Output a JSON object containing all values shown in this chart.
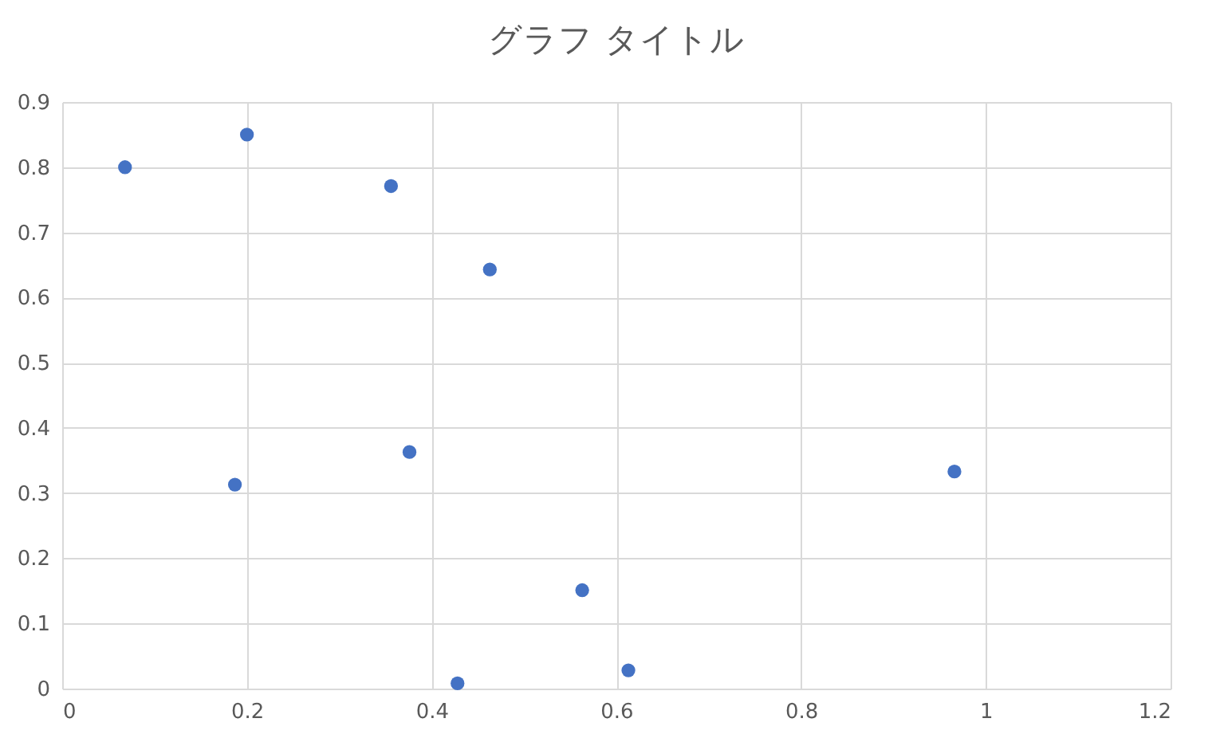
{
  "chart_data": {
    "type": "scatter",
    "title": "グラフ タイトル",
    "x": [
      0.068,
      0.2,
      0.356,
      0.463,
      0.187,
      0.376,
      0.966,
      0.563,
      0.428,
      0.613
    ],
    "series": [
      {
        "color": "#4472c4",
        "values": [
          0.8,
          0.85,
          0.771,
          0.643,
          0.313,
          0.363,
          0.333,
          0.151,
          0.008,
          0.028
        ]
      }
    ],
    "xlim": [
      0,
      1.2
    ],
    "xticks": [
      0,
      0.2,
      0.4,
      0.6,
      0.8,
      1,
      1.2
    ],
    "ylim": [
      0,
      0.9
    ],
    "yticks": [
      0,
      0.1,
      0.2,
      0.3,
      0.4,
      0.5,
      0.6,
      0.7,
      0.8,
      0.9
    ],
    "grid": true,
    "marker": "circle"
  }
}
